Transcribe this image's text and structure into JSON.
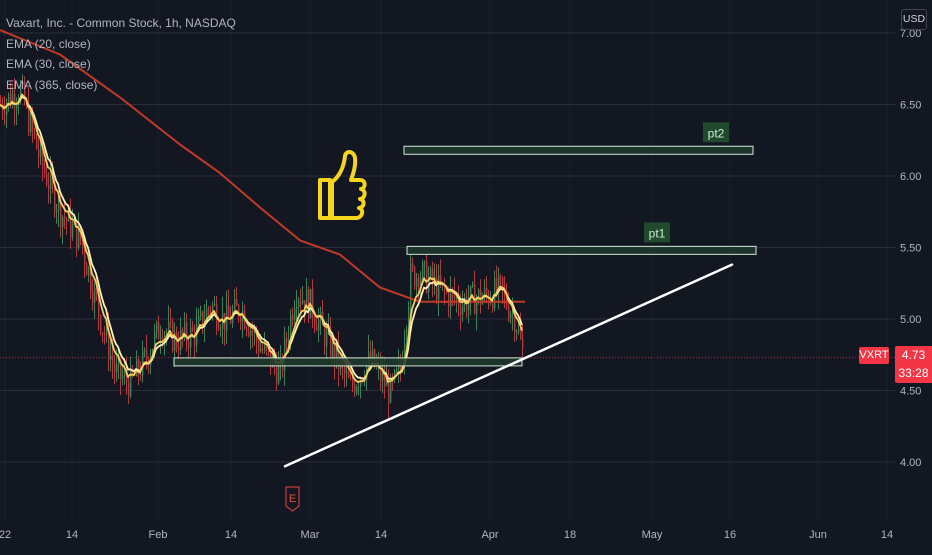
{
  "legend": {
    "title": "Vaxart, Inc. - Common Stock, 1h, NASDAQ",
    "ema20": "EMA (20, close)",
    "ema30": "EMA (30, close)",
    "ema365": "EMA (365, close)"
  },
  "currency": "USD",
  "ticker": "VXRT",
  "last_price": "4.73",
  "countdown": "33:28",
  "earnings_marker": "E",
  "colors": {
    "background": "#131722",
    "grid": "#2a2e39",
    "axis_text": "#b2b5be",
    "ema20": "#f3cf5a",
    "ema30": "#fff3c0",
    "ema365": "#c03a26",
    "candle_up": "#3f7f5a",
    "candle_down": "#b03a42",
    "zone_fill": "#1f3a2a",
    "zone_border": "#cfe8d6",
    "trendline": "#ffffff",
    "price_badge": "#f23645",
    "thumbs_icon": "#f7d51d"
  },
  "chart_data": {
    "type": "candlestick",
    "price_axis": {
      "ticks": [
        "7.00",
        "6.50",
        "6.00",
        "5.50",
        "5.00",
        "4.50",
        "4.00"
      ],
      "range": [
        3.5,
        7.2
      ]
    },
    "time_axis": {
      "labels": [
        "22",
        "14",
        "Feb",
        "14",
        "Mar",
        "14",
        "Apr",
        "18",
        "May",
        "16",
        "Jun",
        "14"
      ]
    },
    "ema_series": [
      {
        "name": "EMA (20, close)",
        "color": "#f3cf5a"
      },
      {
        "name": "EMA (30, close)",
        "color": "#fff3c0"
      },
      {
        "name": "EMA (365, close)",
        "color": "#c03a26",
        "points": [
          [
            0,
            7.02
          ],
          [
            60,
            6.85
          ],
          [
            120,
            6.55
          ],
          [
            180,
            6.22
          ],
          [
            220,
            6.02
          ],
          [
            260,
            5.78
          ],
          [
            300,
            5.55
          ],
          [
            340,
            5.45
          ],
          [
            380,
            5.22
          ],
          [
            420,
            5.12
          ],
          [
            500,
            5.12
          ],
          [
            525,
            5.12
          ]
        ]
      }
    ],
    "price_path": [
      [
        0,
        6.5
      ],
      [
        20,
        6.6
      ],
      [
        40,
        6.1
      ],
      [
        60,
        5.75
      ],
      [
        80,
        5.55
      ],
      [
        100,
        5.0
      ],
      [
        115,
        4.62
      ],
      [
        130,
        4.55
      ],
      [
        145,
        4.72
      ],
      [
        160,
        4.95
      ],
      [
        175,
        4.85
      ],
      [
        195,
        4.9
      ],
      [
        210,
        5.1
      ],
      [
        225,
        4.98
      ],
      [
        240,
        5.08
      ],
      [
        260,
        4.8
      ],
      [
        280,
        4.62
      ],
      [
        295,
        5.2
      ],
      [
        310,
        5.1
      ],
      [
        330,
        4.8
      ],
      [
        350,
        4.52
      ],
      [
        370,
        4.72
      ],
      [
        390,
        4.48
      ],
      [
        400,
        4.65
      ],
      [
        410,
        5.3
      ],
      [
        420,
        5.32
      ],
      [
        440,
        5.2
      ],
      [
        460,
        5.12
      ],
      [
        480,
        5.15
      ],
      [
        500,
        5.2
      ],
      [
        515,
        5.0
      ],
      [
        523,
        4.73
      ]
    ],
    "zones": [
      {
        "label": "pt2",
        "price": 6.18
      },
      {
        "label": "pt1",
        "price": 5.48
      },
      {
        "label": "",
        "price": 4.7
      }
    ],
    "trendline": {
      "start": [
        285,
        3.97
      ],
      "end": [
        732,
        5.38
      ]
    },
    "current_price": 4.73
  }
}
